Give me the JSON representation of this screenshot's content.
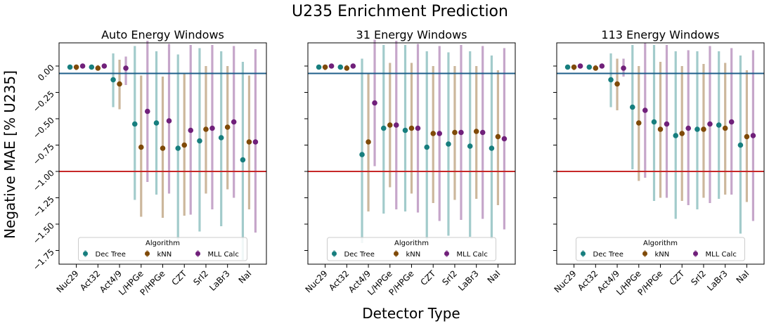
{
  "suptitle": "U235 Enrichment Prediction",
  "ylabel": "Negative MAE [% U235]",
  "xlabel": "Detector Type",
  "legend_title": "Algorithm",
  "colors": {
    "Dec Tree": "#177e7e",
    "kNN": "#7f4a08",
    "MLL Calc": "#70207a",
    "upper_line": "#1f5f8b",
    "lower_line": "#c62828"
  },
  "chart_data": [
    {
      "type": "scatter",
      "title": "Auto Energy Windows",
      "categories": [
        "Nuc29",
        "Act32",
        "Act4/9",
        "L/HPGe",
        "P/HPGe",
        "CZT",
        "SrI2",
        "LaBr3",
        "NaI"
      ],
      "ylim": [
        -1.88,
        0.22
      ],
      "yticks": [
        "0.00",
        "−0.25",
        "−0.50",
        "−0.75",
        "−1.00",
        "−1.25",
        "−1.50",
        "−1.75"
      ],
      "hlines": [
        -0.07,
        -1.0
      ],
      "legend": "lower center",
      "series": [
        {
          "name": "Dec Tree",
          "values": [
            -0.01,
            -0.01,
            -0.13,
            -0.55,
            -0.54,
            -0.78,
            -0.71,
            -0.68,
            -0.89
          ],
          "err_low": [
            -0.03,
            -0.03,
            -0.39,
            -1.27,
            -1.22,
            -1.65,
            -1.57,
            -1.52,
            -1.84
          ],
          "err_high": [
            0.01,
            0.01,
            0.12,
            0.19,
            0.14,
            0.11,
            0.17,
            0.14,
            0.04
          ]
        },
        {
          "name": "kNN",
          "values": [
            -0.01,
            -0.02,
            -0.17,
            -0.77,
            -0.78,
            -0.75,
            -0.6,
            -0.58,
            -0.72
          ],
          "err_low": [
            -0.04,
            -0.04,
            -0.41,
            -1.43,
            -1.44,
            -1.42,
            -1.21,
            -1.17,
            -1.36
          ],
          "err_high": [
            0.01,
            0.01,
            0.06,
            -0.09,
            -0.1,
            -0.07,
            0.0,
            0.0,
            -0.09
          ]
        },
        {
          "name": "MLL Calc",
          "values": [
            0.0,
            0.0,
            -0.02,
            -0.43,
            -0.52,
            -0.61,
            -0.59,
            -0.53,
            -0.72
          ],
          "err_low": [
            -0.02,
            -0.02,
            -0.18,
            -1.1,
            -1.21,
            -1.41,
            -1.36,
            -1.25,
            -1.58
          ],
          "err_high": [
            0.02,
            0.02,
            0.09,
            0.24,
            0.21,
            0.2,
            0.2,
            0.19,
            0.16
          ]
        }
      ]
    },
    {
      "type": "scatter",
      "title": "31 Energy Windows",
      "categories": [
        "Nuc29",
        "Act32",
        "Act4/9",
        "L/HPGe",
        "P/HPGe",
        "CZT",
        "SrI2",
        "LaBr3",
        "NaI"
      ],
      "ylim": [
        -1.88,
        0.22
      ],
      "hlines": [
        -0.07,
        -1.0
      ],
      "legend": "lower center",
      "series": [
        {
          "name": "Dec Tree",
          "values": [
            -0.01,
            -0.01,
            -0.84,
            -0.59,
            -0.61,
            -0.77,
            -0.74,
            -0.76,
            -0.78
          ],
          "err_low": [
            -0.03,
            -0.03,
            -1.68,
            -1.4,
            -1.38,
            -1.65,
            -1.61,
            -1.62,
            -1.64
          ],
          "err_high": [
            0.01,
            0.01,
            0.07,
            0.2,
            0.2,
            0.14,
            0.13,
            0.14,
            0.1
          ]
        },
        {
          "name": "kNN",
          "values": [
            -0.01,
            -0.02,
            -0.72,
            -0.56,
            -0.59,
            -0.64,
            -0.63,
            -0.62,
            -0.67
          ],
          "err_low": [
            -0.04,
            -0.04,
            -1.38,
            -1.15,
            -1.21,
            -1.3,
            -1.27,
            -1.26,
            -1.32
          ],
          "err_high": [
            0.01,
            0.01,
            -0.07,
            0.03,
            0.03,
            -0.0,
            -0.0,
            -0.0,
            -0.04
          ]
        },
        {
          "name": "MLL Calc",
          "values": [
            0.0,
            0.0,
            -0.35,
            -0.56,
            -0.59,
            -0.64,
            -0.63,
            -0.63,
            -0.69
          ],
          "err_low": [
            -0.02,
            -0.02,
            -0.95,
            -1.36,
            -1.39,
            -1.47,
            -1.46,
            -1.45,
            -1.55
          ],
          "err_high": [
            0.02,
            0.02,
            0.25,
            0.24,
            0.21,
            0.19,
            0.2,
            0.19,
            0.17
          ]
        }
      ]
    },
    {
      "type": "scatter",
      "title": "113 Energy Windows",
      "categories": [
        "Nuc29",
        "Act32",
        "Act4/9",
        "L/HPGe",
        "P/HPGe",
        "CZT",
        "SrI2",
        "LaBr3",
        "NaI"
      ],
      "ylim": [
        -1.88,
        0.22
      ],
      "hlines": [
        -0.07,
        -1.0
      ],
      "legend": "lower center",
      "series": [
        {
          "name": "Dec Tree",
          "values": [
            -0.01,
            -0.01,
            -0.13,
            -0.39,
            -0.53,
            -0.66,
            -0.6,
            -0.56,
            -0.75
          ],
          "err_low": [
            -0.03,
            -0.03,
            -0.39,
            -0.98,
            -1.28,
            -1.45,
            -1.36,
            -1.26,
            -1.59
          ],
          "err_high": [
            0.01,
            0.01,
            0.12,
            0.2,
            0.2,
            0.14,
            0.14,
            0.14,
            0.1
          ]
        },
        {
          "name": "kNN",
          "values": [
            -0.01,
            -0.02,
            -0.17,
            -0.54,
            -0.6,
            -0.64,
            -0.6,
            -0.59,
            -0.67
          ],
          "err_low": [
            -0.04,
            -0.04,
            -0.42,
            -1.09,
            -1.25,
            -1.28,
            -1.25,
            -1.22,
            -1.29
          ],
          "err_high": [
            0.01,
            0.01,
            0.07,
            -0.0,
            0.04,
            0.0,
            0.02,
            0.03,
            -0.04
          ]
        },
        {
          "name": "MLL Calc",
          "values": [
            0.0,
            0.0,
            -0.02,
            -0.42,
            -0.55,
            -0.59,
            -0.55,
            -0.53,
            -0.66
          ],
          "err_low": [
            -0.02,
            -0.02,
            -0.1,
            -1.06,
            -1.25,
            -1.32,
            -1.3,
            -1.22,
            -1.47
          ],
          "err_high": [
            0.02,
            0.02,
            0.07,
            0.22,
            0.2,
            0.15,
            0.19,
            0.17,
            0.15
          ]
        }
      ]
    }
  ]
}
